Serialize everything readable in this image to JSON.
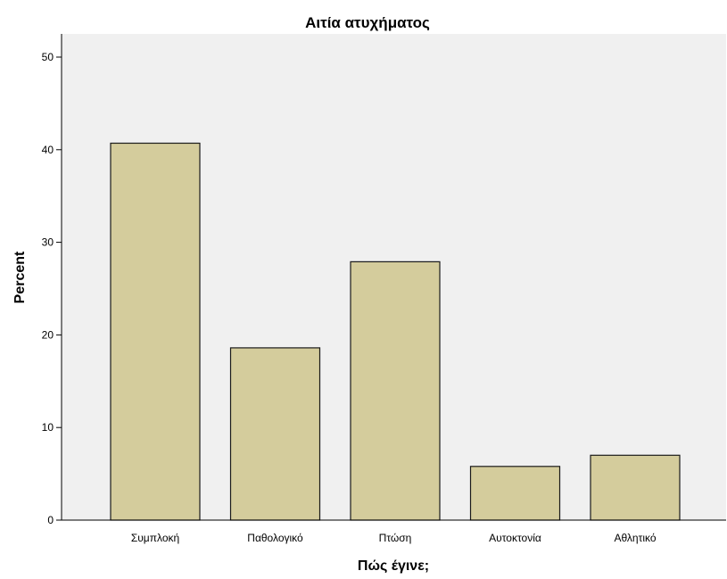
{
  "chart_data": {
    "type": "bar",
    "title": "Αιτία ατυχήματος",
    "xlabel": "Πώς έγινε;",
    "ylabel": "Percent",
    "categories": [
      "Συμπλοκή",
      "Παθολογικό",
      "Πτώση",
      "Αυτοκτονία",
      "Αθλητικό"
    ],
    "values": [
      40.7,
      18.6,
      27.9,
      5.8,
      7.0
    ],
    "ylim": [
      0,
      52.5
    ],
    "yticks": [
      0,
      10,
      20,
      30,
      40,
      50
    ],
    "grid": false,
    "legend": "none",
    "colors": {
      "bar_fill": "#d4cc9c",
      "bar_stroke": "#1a1a1a",
      "plot_background": "#f0f0f0",
      "axis": "#000000"
    }
  }
}
